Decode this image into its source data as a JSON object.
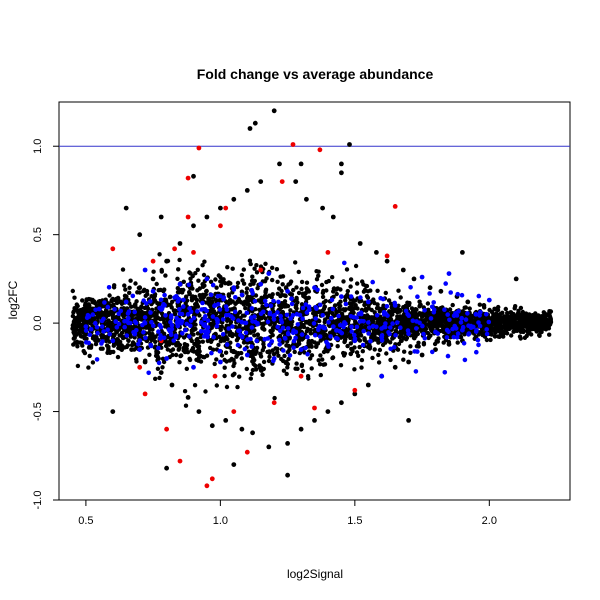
{
  "chart_data": {
    "type": "scatter",
    "title": "Fold change vs average abundance",
    "xlabel": "log2Signal",
    "ylabel": "log2FC",
    "xlim": [
      0.4,
      2.3
    ],
    "ylim": [
      -1.0,
      1.25
    ],
    "xticks": [
      0.5,
      1.0,
      1.5,
      2.0
    ],
    "xtick_labels": [
      "0.5",
      "1.0",
      "1.5",
      "2.0"
    ],
    "yticks": [
      -1.0,
      -0.5,
      0.0,
      0.5,
      1.0
    ],
    "ytick_labels": [
      "-1.0",
      "-0.5",
      "0.0",
      "0.5",
      "1.0"
    ],
    "reference_line": {
      "y": 1.0,
      "color": "#3333cc"
    },
    "grid": false,
    "legend": "none",
    "colors": {
      "black": "#000000",
      "blue": "#0000ff",
      "red": "#ee0000"
    },
    "series": [
      {
        "color": "#000000",
        "points": [
          [
            0.46,
            0.02
          ],
          [
            0.48,
            -0.01
          ],
          [
            0.5,
            0.03
          ],
          [
            0.52,
            -0.05
          ],
          [
            0.55,
            0.06
          ],
          [
            0.57,
            -0.08
          ],
          [
            0.6,
            0.1
          ],
          [
            0.62,
            -0.12
          ],
          [
            0.65,
            0.15
          ],
          [
            0.67,
            -0.15
          ],
          [
            0.7,
            0.2
          ],
          [
            0.72,
            -0.22
          ],
          [
            0.75,
            0.25
          ],
          [
            0.78,
            -0.28
          ],
          [
            0.8,
            0.35
          ],
          [
            0.82,
            -0.35
          ],
          [
            0.85,
            0.45
          ],
          [
            0.88,
            -0.42
          ],
          [
            0.9,
            0.55
          ],
          [
            0.92,
            -0.5
          ],
          [
            0.95,
            0.6
          ],
          [
            0.97,
            -0.58
          ],
          [
            1.0,
            0.65
          ],
          [
            1.02,
            -0.55
          ],
          [
            1.05,
            0.7
          ],
          [
            1.08,
            -0.6
          ],
          [
            1.1,
            0.75
          ],
          [
            1.12,
            -0.62
          ],
          [
            1.15,
            0.8
          ],
          [
            1.18,
            -0.7
          ],
          [
            1.2,
            1.2
          ],
          [
            1.22,
            0.9
          ],
          [
            1.25,
            -0.68
          ],
          [
            1.28,
            0.8
          ],
          [
            1.3,
            -0.6
          ],
          [
            1.32,
            0.7
          ],
          [
            1.35,
            -0.55
          ],
          [
            1.38,
            0.65
          ],
          [
            1.4,
            -0.5
          ],
          [
            1.42,
            0.6
          ],
          [
            1.45,
            -0.45
          ],
          [
            1.48,
            1.01
          ],
          [
            1.5,
            -0.4
          ],
          [
            1.52,
            0.45
          ],
          [
            1.55,
            -0.35
          ],
          [
            1.58,
            0.4
          ],
          [
            1.6,
            -0.3
          ],
          [
            1.62,
            0.35
          ],
          [
            1.65,
            -0.25
          ],
          [
            1.68,
            0.3
          ],
          [
            1.7,
            -0.22
          ],
          [
            1.72,
            0.25
          ],
          [
            1.75,
            -0.18
          ],
          [
            1.78,
            0.2
          ],
          [
            1.8,
            -0.15
          ],
          [
            1.82,
            0.18
          ],
          [
            1.85,
            -0.12
          ],
          [
            1.88,
            0.15
          ],
          [
            1.9,
            -0.1
          ],
          [
            1.92,
            0.12
          ],
          [
            1.95,
            -0.08
          ],
          [
            1.98,
            0.1
          ],
          [
            2.0,
            -0.06
          ],
          [
            2.02,
            0.08
          ],
          [
            2.05,
            -0.05
          ],
          [
            2.08,
            0.06
          ],
          [
            2.1,
            -0.04
          ],
          [
            2.12,
            0.05
          ],
          [
            2.15,
            -0.03
          ],
          [
            2.18,
            0.04
          ],
          [
            2.2,
            -0.02
          ],
          [
            2.22,
            0.05
          ],
          [
            0.6,
            -0.5
          ],
          [
            0.7,
            0.5
          ],
          [
            1.13,
            1.13
          ],
          [
            1.11,
            1.1
          ],
          [
            0.78,
            0.6
          ],
          [
            0.9,
            0.83
          ],
          [
            1.25,
            -0.86
          ],
          [
            0.8,
            -0.82
          ],
          [
            1.3,
            0.9
          ],
          [
            1.45,
            0.9
          ],
          [
            1.45,
            0.85
          ],
          [
            1.7,
            -0.55
          ],
          [
            2.1,
            0.25
          ],
          [
            1.9,
            0.4
          ],
          [
            0.65,
            0.65
          ],
          [
            1.05,
            -0.8
          ]
        ]
      },
      {
        "color": "#0000ff",
        "points": [
          [
            0.5,
            -0.02
          ],
          [
            0.55,
            0.08
          ],
          [
            0.6,
            -0.1
          ],
          [
            0.65,
            0.12
          ],
          [
            0.7,
            -0.15
          ],
          [
            0.75,
            0.18
          ],
          [
            0.8,
            -0.2
          ],
          [
            0.85,
            0.22
          ],
          [
            0.9,
            -0.25
          ],
          [
            0.95,
            0.25
          ],
          [
            1.0,
            -0.22
          ],
          [
            1.05,
            0.2
          ],
          [
            1.1,
            -0.18
          ],
          [
            1.15,
            0.22
          ],
          [
            1.2,
            -0.2
          ],
          [
            1.25,
            0.18
          ],
          [
            1.3,
            -0.15
          ],
          [
            1.35,
            0.2
          ],
          [
            1.4,
            -0.12
          ],
          [
            1.45,
            0.15
          ],
          [
            1.5,
            -0.1
          ],
          [
            1.55,
            0.12
          ],
          [
            1.6,
            -0.08
          ],
          [
            1.65,
            0.1
          ],
          [
            1.7,
            -0.06
          ],
          [
            1.75,
            0.26
          ],
          [
            1.8,
            -0.05
          ],
          [
            1.85,
            0.28
          ],
          [
            1.9,
            -0.04
          ],
          [
            1.95,
            0.05
          ],
          [
            2.0,
            0.13
          ],
          [
            1.6,
            -0.3
          ],
          [
            0.72,
            0.3
          ],
          [
            1.18,
            0.28
          ],
          [
            0.88,
            0.05
          ],
          [
            1.42,
            -0.02
          ],
          [
            0.98,
            0.1
          ],
          [
            1.28,
            -0.05
          ]
        ]
      },
      {
        "color": "#ee0000",
        "points": [
          [
            0.92,
            0.99
          ],
          [
            1.27,
            1.01
          ],
          [
            1.37,
            0.98
          ],
          [
            0.88,
            0.82
          ],
          [
            1.23,
            0.8
          ],
          [
            1.65,
            0.66
          ],
          [
            0.83,
            0.42
          ],
          [
            0.9,
            0.4
          ],
          [
            0.8,
            -0.6
          ],
          [
            0.85,
            -0.78
          ],
          [
            0.95,
            -0.92
          ],
          [
            0.97,
            -0.88
          ],
          [
            1.1,
            -0.73
          ],
          [
            0.7,
            -0.25
          ],
          [
            0.75,
            0.35
          ],
          [
            1.0,
            0.55
          ],
          [
            1.05,
            -0.5
          ],
          [
            1.2,
            -0.45
          ],
          [
            1.35,
            -0.48
          ],
          [
            1.5,
            -0.38
          ],
          [
            0.78,
            -0.1
          ],
          [
            1.62,
            0.38
          ],
          [
            0.6,
            0.42
          ],
          [
            1.15,
            0.3
          ],
          [
            0.98,
            -0.3
          ],
          [
            1.4,
            0.4
          ],
          [
            1.3,
            -0.3
          ],
          [
            0.88,
            0.6
          ],
          [
            1.02,
            0.65
          ],
          [
            0.72,
            -0.4
          ]
        ]
      }
    ]
  }
}
